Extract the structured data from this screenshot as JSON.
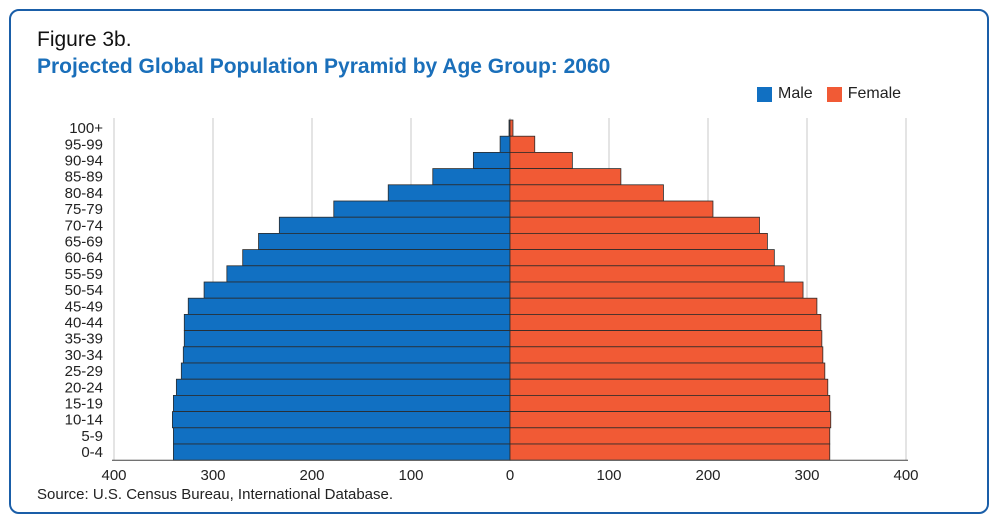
{
  "figure_label": "Figure 3b.",
  "title": "Projected Global Population Pyramid by Age Group: 2060",
  "source": "Source: U.S. Census Bureau, International Database.",
  "colors": {
    "male": "#1170c2",
    "female": "#f15a35",
    "accent": "#1a6fba"
  },
  "chart_data": {
    "type": "bar",
    "orientation": "horizontal-pyramid",
    "title": "Projected Global Population Pyramid by Age Group: 2060",
    "categories": [
      "100+",
      "95-99",
      "90-94",
      "85-89",
      "80-84",
      "75-79",
      "70-74",
      "65-69",
      "60-64",
      "55-59",
      "50-54",
      "45-49",
      "40-44",
      "35-39",
      "30-34",
      "25-29",
      "20-24",
      "15-19",
      "10-14",
      "5-9",
      "0-4"
    ],
    "series": [
      {
        "name": "Male",
        "color": "#1170c2",
        "values": [
          1,
          10,
          37,
          78,
          123,
          178,
          233,
          254,
          270,
          286,
          309,
          325,
          329,
          329,
          330,
          332,
          337,
          340,
          341,
          340,
          340
        ]
      },
      {
        "name": "Female",
        "color": "#f15a35",
        "values": [
          3,
          25,
          63,
          112,
          155,
          205,
          252,
          260,
          267,
          277,
          296,
          310,
          314,
          315,
          316,
          318,
          321,
          323,
          324,
          323,
          323
        ]
      }
    ],
    "x_ticks": [
      "400",
      "300",
      "200",
      "100",
      "0",
      "100",
      "200",
      "300",
      "400"
    ],
    "xlim": [
      -400,
      400
    ],
    "grid": "vertical",
    "legend": "top-right"
  }
}
